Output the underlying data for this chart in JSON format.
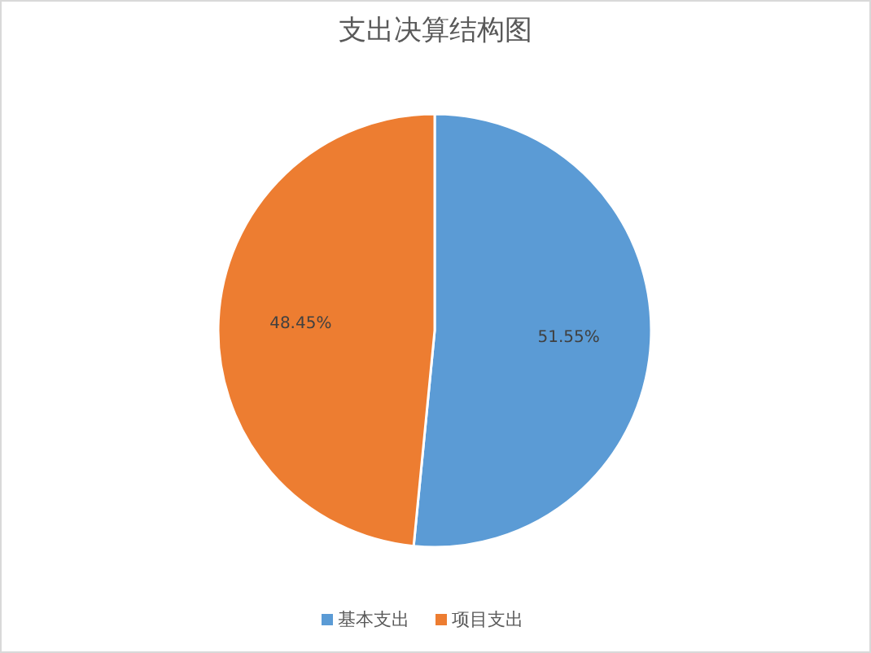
{
  "chart_data": {
    "type": "pie",
    "title": "支出决算结构图",
    "categories": [
      "基本支出",
      "项目支出"
    ],
    "values": [
      51.55,
      48.45
    ],
    "colors": [
      "#5b9bd5",
      "#ed7d31"
    ],
    "value_labels": [
      "51.55%",
      "48.45%"
    ],
    "legend": "bottom"
  }
}
